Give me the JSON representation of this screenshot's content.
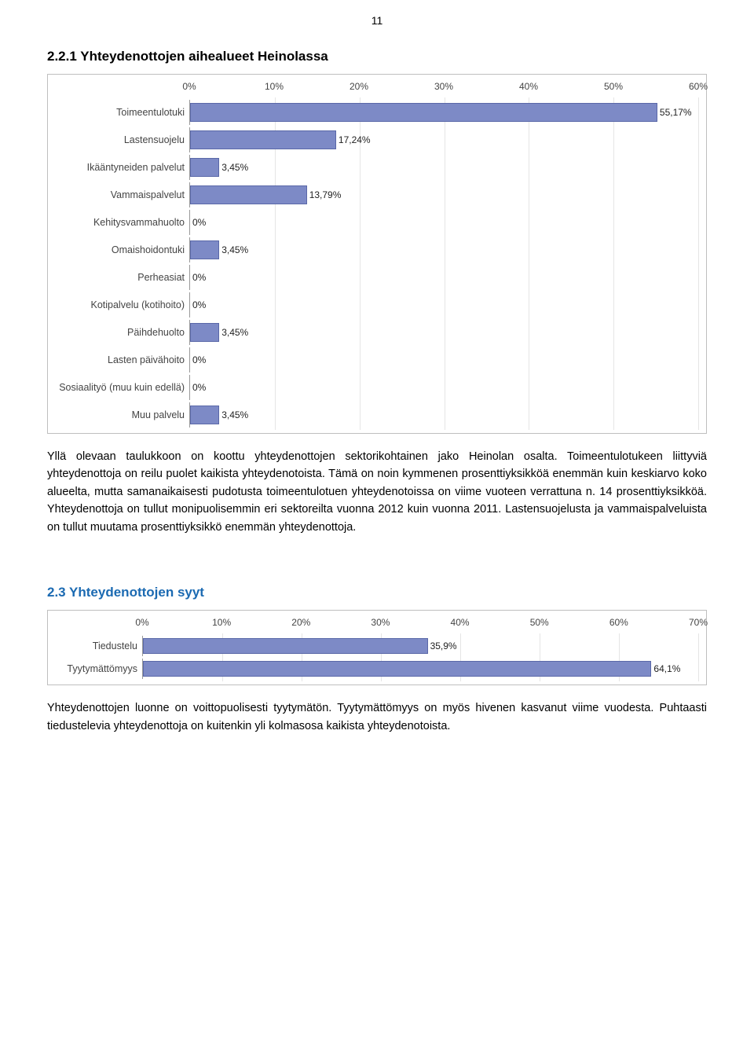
{
  "page_number": "11",
  "heading1": "2.2.1 Yhteydenottojen aihealueet Heinolassa",
  "chart1": {
    "type": "bar",
    "xmax": 60,
    "xtick_step": 10,
    "tick_suffix": "%",
    "bar_color": "#7d8ac6",
    "bar_border": "#5a68a8",
    "grid_color": "#e5e5e5",
    "label_color": "#444444",
    "categories": [
      "Toimeentulotuki",
      "Lastensuojelu",
      "Ikääntyneiden palvelut",
      "Vammaispalvelut",
      "Kehitysvammahuolto",
      "Omaishoidontuki",
      "Perheasiat",
      "Kotipalvelu (kotihoito)",
      "Päihdehuolto",
      "Lasten päivähoito",
      "Sosiaalityö (muu kuin edellä)",
      "Muu palvelu"
    ],
    "values": [
      55.17,
      17.24,
      3.45,
      13.79,
      0,
      3.45,
      0,
      0,
      3.45,
      0,
      0,
      3.45
    ],
    "value_labels": [
      "55,17%",
      "17,24%",
      "3,45%",
      "13,79%",
      "0%",
      "3,45%",
      "0%",
      "0%",
      "3,45%",
      "0%",
      "0%",
      "3,45%"
    ]
  },
  "para1": "Yllä olevaan taulukkoon on koottu yhteydenottojen sektorikohtainen jako Heinolan osalta. Toimeentulotukeen liittyviä yhteydenottoja on reilu puolet kaikista yhteydenotoista. Tämä on noin kymmenen prosenttiyksikköä enemmän kuin keskiarvo koko alueelta, mutta samanaikaisesti pudotusta toimeentulotuen yhteydenotoissa on viime vuoteen verrattuna n. 14 prosenttiyksikköä. Yhteydenottoja on tullut monipuolisemmin eri sektoreilta vuonna 2012 kuin vuonna 2011. Lastensuojelusta ja vammaispalveluista on tullut muutama prosenttiyksikkö enemmän yhteydenottoja.",
  "heading2": "2.3 Yhteydenottojen syyt",
  "chart2": {
    "type": "bar",
    "xmax": 70,
    "xtick_step": 10,
    "tick_suffix": "%",
    "bar_color": "#7d8ac6",
    "bar_border": "#5a68a8",
    "grid_color": "#e5e5e5",
    "label_color": "#444444",
    "categories": [
      "Tiedustelu",
      "Tyytymättömyys"
    ],
    "values": [
      35.9,
      64.1
    ],
    "value_labels": [
      "35,9%",
      "64,1%"
    ]
  },
  "para2": "Yhteydenottojen luonne on voittopuolisesti tyytymätön. Tyytymättömyys on myös hivenen kasvanut viime vuodesta. Puhtaasti tiedustelevia yhteydenottoja on kuitenkin yli kolmasosa kaikista yhteydenotoista."
}
